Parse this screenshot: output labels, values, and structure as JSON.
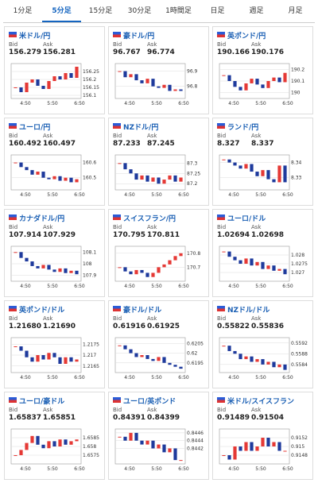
{
  "tabs": [
    "1分足",
    "5分足",
    "15分足",
    "30分足",
    "1時間足",
    "日足",
    "週足",
    "月足"
  ],
  "bid_label": "Bid",
  "ask_label": "Ask",
  "xticks": [
    "4:50",
    "5:50",
    "6:50"
  ],
  "cards": [
    {
      "name": "米ドル/円",
      "bid": "156.279",
      "ask": "156.281",
      "yticks": [
        156.25,
        156.2,
        156.15,
        156.1
      ],
      "ylim": [
        156.08,
        156.3
      ],
      "closes": [
        156.15,
        156.12,
        156.18,
        156.2,
        156.16,
        156.14,
        156.19,
        156.22,
        156.2,
        156.24,
        156.21,
        156.28
      ]
    },
    {
      "name": "豪ドル/円",
      "bid": "96.767",
      "ask": "96.774",
      "yticks": [
        96.9,
        96.8
      ],
      "ylim": [
        96.72,
        96.95
      ],
      "closes": [
        96.9,
        96.86,
        96.88,
        96.84,
        96.82,
        96.85,
        96.8,
        96.79,
        96.81,
        96.77,
        96.78,
        96.77
      ]
    },
    {
      "name": "英ポンド/円",
      "bid": "190.166",
      "ask": "190.176",
      "yticks": [
        190.2,
        190.1,
        190
      ],
      "ylim": [
        189.95,
        190.25
      ],
      "closes": [
        190.15,
        190.1,
        190.05,
        190.02,
        190.08,
        190.12,
        190.07,
        190.04,
        190.1,
        190.13,
        190.09,
        190.17
      ]
    },
    {
      "name": "ユーロ/円",
      "bid": "160.492",
      "ask": "160.497",
      "yticks": [
        160.6,
        160.5
      ],
      "ylim": [
        160.42,
        160.65
      ],
      "closes": [
        160.6,
        160.57,
        160.55,
        160.52,
        160.54,
        160.5,
        160.49,
        160.51,
        160.48,
        160.5,
        160.47,
        160.49
      ]
    },
    {
      "name": "NZドル/円",
      "bid": "87.233",
      "ask": "87.245",
      "yticks": [
        87.3,
        87.25,
        87.2
      ],
      "ylim": [
        87.17,
        87.34
      ],
      "closes": [
        87.3,
        87.27,
        87.25,
        87.22,
        87.24,
        87.21,
        87.23,
        87.2,
        87.22,
        87.24,
        87.21,
        87.23
      ]
    },
    {
      "name": "ランド/円",
      "bid": "8.327",
      "ask": "8.337",
      "yticks": [
        8.34,
        8.33
      ],
      "ylim": [
        8.322,
        8.345
      ],
      "closes": [
        8.342,
        8.34,
        8.338,
        8.336,
        8.339,
        8.334,
        8.331,
        8.335,
        8.329,
        8.327,
        8.338,
        8.327
      ]
    },
    {
      "name": "カナダドル/円",
      "bid": "107.914",
      "ask": "107.929",
      "yticks": [
        108.1,
        108,
        107.9
      ],
      "ylim": [
        107.85,
        108.15
      ],
      "closes": [
        108.1,
        108.05,
        108.02,
        107.98,
        107.96,
        107.99,
        107.95,
        107.93,
        107.96,
        107.92,
        107.94,
        107.91
      ]
    },
    {
      "name": "スイスフラン/円",
      "bid": "170.795",
      "ask": "170.811",
      "yticks": [
        170.8,
        170.7
      ],
      "ylim": [
        170.6,
        170.85
      ],
      "closes": [
        170.7,
        170.67,
        170.65,
        170.68,
        170.66,
        170.63,
        170.66,
        170.7,
        170.72,
        170.75,
        170.78,
        170.8
      ]
    },
    {
      "name": "ユーロ/ドル",
      "bid": "1.02694",
      "ask": "1.02698",
      "yticks": [
        1.028,
        1.0275,
        1.027
      ],
      "ylim": [
        1.0265,
        1.0285
      ],
      "closes": [
        1.0282,
        1.0279,
        1.0277,
        1.0275,
        1.0278,
        1.0274,
        1.0276,
        1.0272,
        1.0274,
        1.0271,
        1.0272,
        1.0269
      ]
    },
    {
      "name": "英ポンド/ドル",
      "bid": "1.21680",
      "ask": "1.21690",
      "yticks": [
        1.2175,
        1.217,
        1.2165
      ],
      "ylim": [
        1.2162,
        1.2178
      ],
      "closes": [
        1.2174,
        1.2172,
        1.2169,
        1.2167,
        1.217,
        1.2168,
        1.2171,
        1.2169,
        1.2166,
        1.2169,
        1.2167,
        1.2168
      ]
    },
    {
      "name": "豪ドル/ドル",
      "bid": "0.61916",
      "ask": "0.61925",
      "yticks": [
        0.6205,
        0.62,
        0.6195
      ],
      "ylim": [
        0.619,
        0.6208
      ],
      "closes": [
        0.6204,
        0.6202,
        0.62,
        0.6198,
        0.6199,
        0.6197,
        0.6196,
        0.6198,
        0.6195,
        0.6194,
        0.6193,
        0.6192
      ]
    },
    {
      "name": "NZドル/ドル",
      "bid": "0.55822",
      "ask": "0.55836",
      "yticks": [
        0.5592,
        0.5588,
        0.5584
      ],
      "ylim": [
        0.5581,
        0.5594
      ],
      "closes": [
        0.5591,
        0.5589,
        0.5588,
        0.5586,
        0.5587,
        0.5585,
        0.5586,
        0.5584,
        0.5585,
        0.5583,
        0.5584,
        0.5582
      ]
    },
    {
      "name": "ユーロ/豪ドル",
      "bid": "1.65837",
      "ask": "1.65851",
      "yticks": [
        1.6585,
        1.658,
        1.6575
      ],
      "ylim": [
        1.657,
        1.659
      ],
      "closes": [
        1.6575,
        1.6578,
        1.6582,
        1.6586,
        1.6581,
        1.6579,
        1.6583,
        1.658,
        1.6584,
        1.6581,
        1.6583,
        1.6584
      ]
    },
    {
      "name": "ユーロ/英ポンド",
      "bid": "0.84391",
      "ask": "0.84399",
      "yticks": [
        0.8446,
        0.8444,
        0.8442
      ],
      "ylim": [
        0.8438,
        0.8447
      ],
      "closes": [
        0.8445,
        0.8444,
        0.8446,
        0.8444,
        0.8443,
        0.8444,
        0.8442,
        0.8443,
        0.8441,
        0.8442,
        0.8439,
        0.8439
      ]
    },
    {
      "name": "米ドル/スイスフラン",
      "bid": "0.91489",
      "ask": "0.91504",
      "yticks": [
        0.9152,
        0.915,
        0.9148
      ],
      "ylim": [
        0.9146,
        0.9154
      ],
      "closes": [
        0.9148,
        0.9147,
        0.915,
        0.9149,
        0.9151,
        0.9149,
        0.915,
        0.9152,
        0.915,
        0.9151,
        0.9149,
        0.9149
      ]
    }
  ]
}
